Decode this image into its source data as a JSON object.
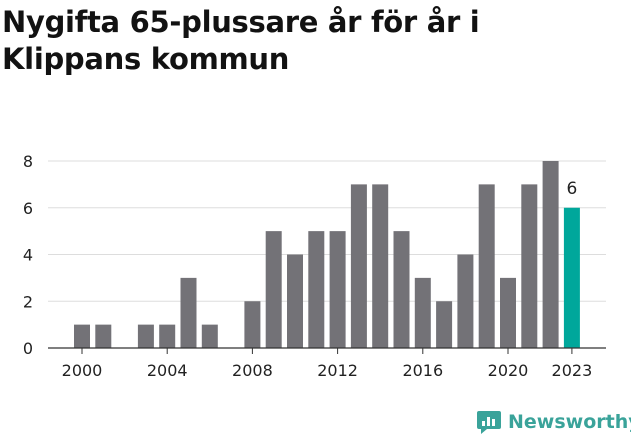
{
  "title": "Nygifta 65-plussare år för år i Klippans kommun",
  "brand": {
    "name": "Newsworthy",
    "icon": "newsworthy-chart-icon"
  },
  "colors": {
    "bar": "#737277",
    "highlight": "#00a79b",
    "grid": "#dddddd",
    "axis": "#333333",
    "brand": "#3aa39a"
  },
  "chart_data": {
    "type": "bar",
    "title": "Nygifta 65-plussare år för år i Klippans kommun",
    "categories": [
      "2000",
      "2001",
      "2002",
      "2003",
      "2004",
      "2005",
      "2006",
      "2007",
      "2008",
      "2009",
      "2010",
      "2011",
      "2012",
      "2013",
      "2014",
      "2015",
      "2016",
      "2017",
      "2018",
      "2019",
      "2020",
      "2021",
      "2022",
      "2023"
    ],
    "values": [
      1,
      1,
      0,
      1,
      1,
      3,
      1,
      0,
      2,
      5,
      4,
      5,
      5,
      7,
      7,
      5,
      3,
      2,
      4,
      7,
      3,
      7,
      8,
      6
    ],
    "x_tick_labels": [
      "2000",
      "2004",
      "2008",
      "2012",
      "2016",
      "2020",
      "2023"
    ],
    "y_ticks": [
      0,
      2,
      4,
      6,
      8
    ],
    "ylim": [
      0,
      8
    ],
    "highlight": {
      "category": "2023",
      "label": "6"
    },
    "grid": true,
    "xlabel": "",
    "ylabel": ""
  }
}
